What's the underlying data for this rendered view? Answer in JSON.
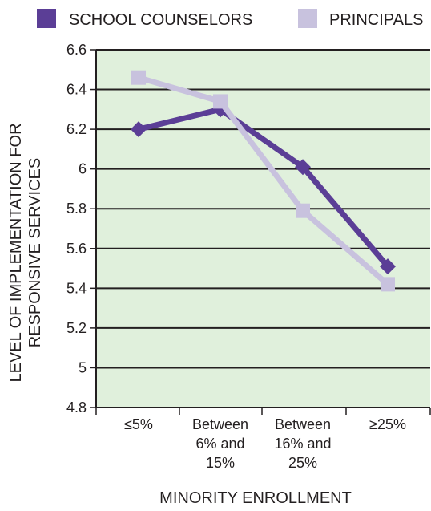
{
  "chart_data": {
    "type": "line",
    "title": "",
    "xlabel": "MINORITY ENROLLMENT",
    "ylabel": [
      "LEVEL OF IMPLEMENTATION FOR",
      "RESPONSIVE SERVICES"
    ],
    "categories": [
      [
        "≤5%"
      ],
      [
        "Between",
        "6% and",
        "15%"
      ],
      [
        "Between",
        "16% and",
        "25%"
      ],
      [
        "≥25%"
      ]
    ],
    "ylim": [
      4.8,
      6.6
    ],
    "yticks": [
      "4.8",
      "5",
      "5.2",
      "5.4",
      "5.6",
      "5.8",
      "6",
      "6.2",
      "6.4",
      "6.6"
    ],
    "series": [
      {
        "name": "SCHOOL COUNSELORS",
        "color": "#5b3e96",
        "marker": "diamond",
        "values": [
          6.2,
          6.3,
          6.01,
          5.51
        ]
      },
      {
        "name": "PRINCIPALS",
        "color": "#c8c2de",
        "marker": "square",
        "values": [
          6.46,
          6.34,
          5.79,
          5.42
        ]
      }
    ],
    "grid": true,
    "plot_background": "#e0f0dc",
    "legend_position": "top"
  }
}
